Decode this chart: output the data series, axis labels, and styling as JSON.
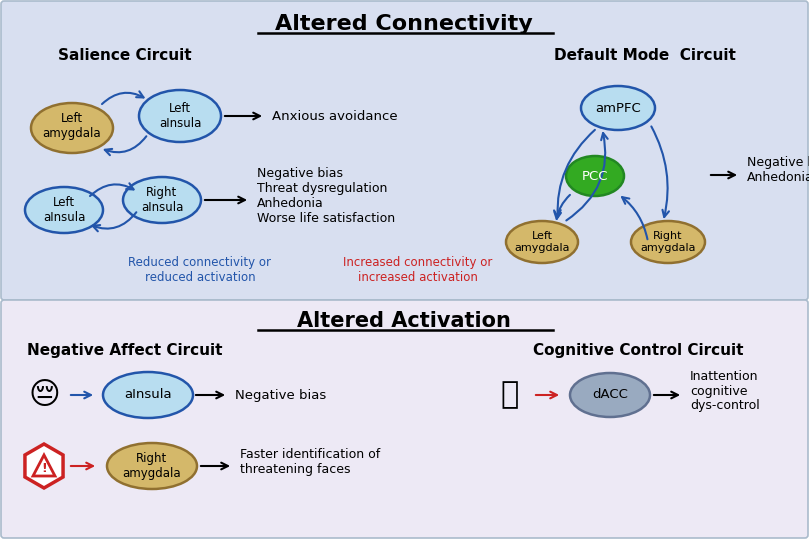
{
  "title_top": "Altered Connectivity",
  "title_bottom": "Altered Activation",
  "bg_top": "#d8dff0",
  "bg_bottom": "#ede9f5",
  "blue_color": "#2255aa",
  "red_color": "#cc2222",
  "legend_blue_text": "Reduced connectivity or\nreduced activation",
  "legend_red_text": "Increased connectivity or\nincreased activation",
  "salience_title": "Salience Circuit",
  "default_title": "Default Mode  Circuit",
  "neg_affect_title": "Negative Affect Circuit",
  "cog_control_title": "Cognitive Control Circuit",
  "amygdala_color": "#d4b86a",
  "insula_color": "#b8ddf0",
  "green_color": "#33aa22",
  "dacc_color": "#99aac0",
  "amygdala_edge": "#907030",
  "dacc_edge": "#607090",
  "green_edge": "#228822"
}
